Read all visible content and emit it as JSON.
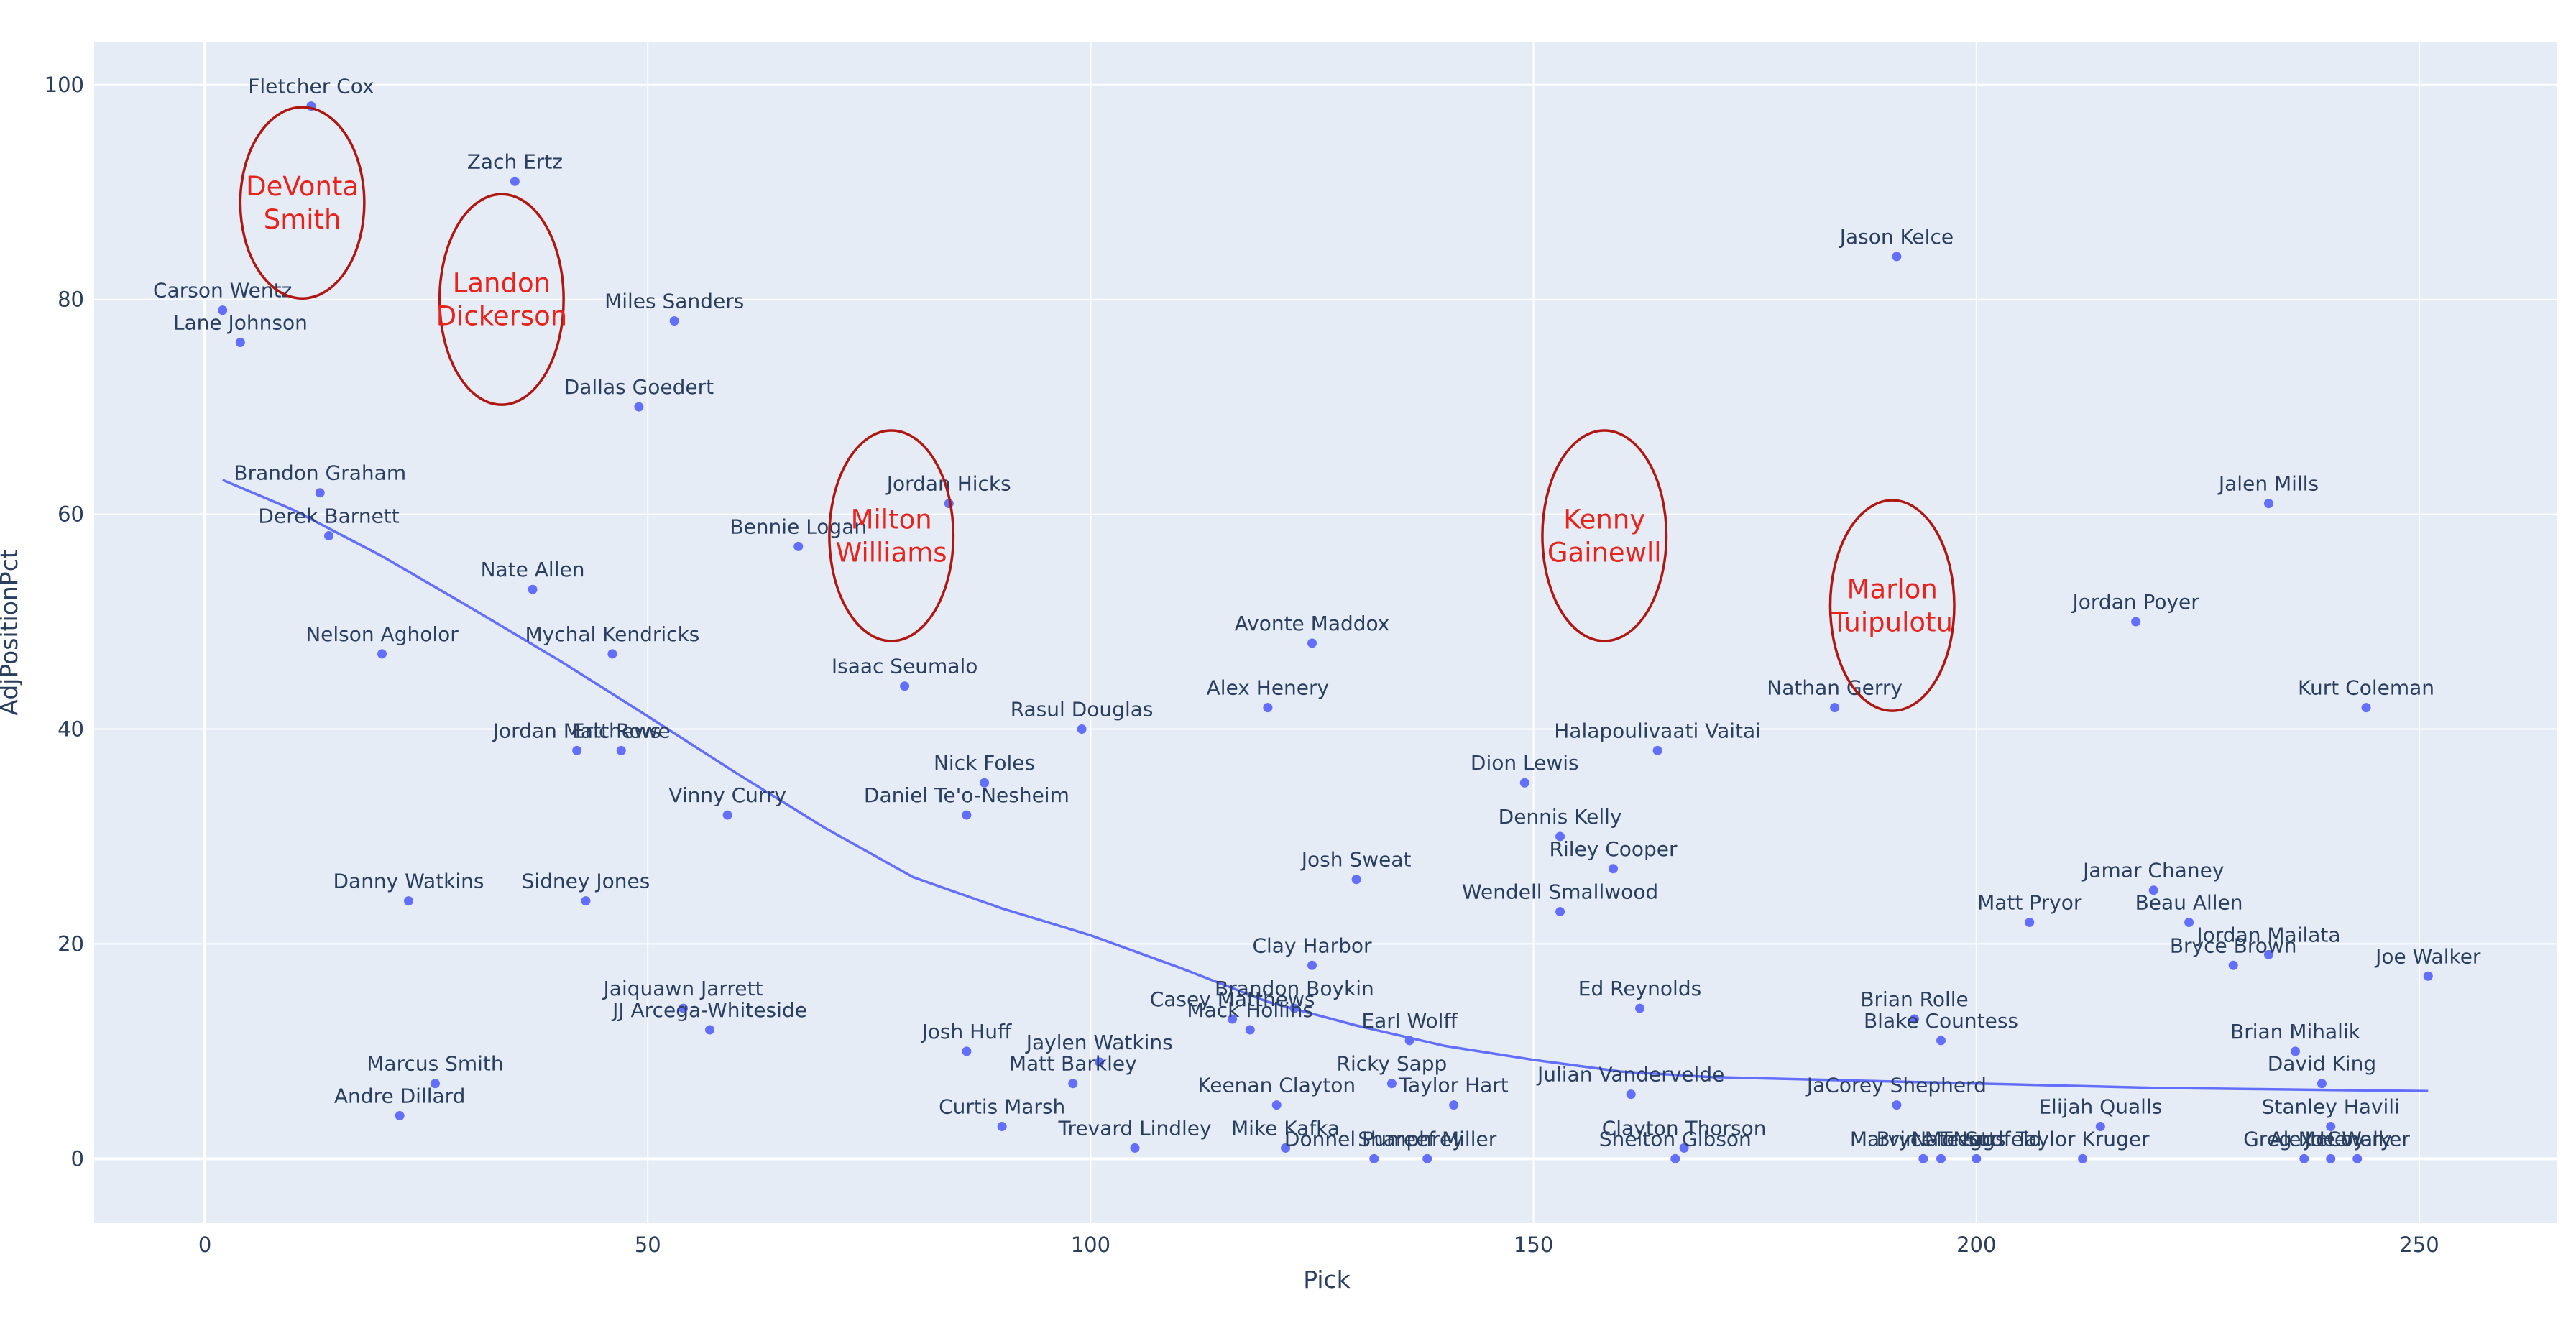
{
  "chart_data": {
    "type": "scatter",
    "title": "",
    "xlabel": "Pick",
    "ylabel": "AdjPositionPct",
    "xlim": [
      -12.5,
      265.5
    ],
    "ylim": [
      -6,
      104
    ],
    "xticks": [
      0,
      50,
      100,
      150,
      200,
      250
    ],
    "yticks": [
      0,
      20,
      40,
      60,
      80,
      100
    ],
    "colors": {
      "plot_bg": "#e5ecf6",
      "grid": "#ffffff",
      "marker": "#636efa",
      "trend": "#636efa",
      "annotation": "#e8231c",
      "ellipse": "#b01712",
      "text": "#2a3f5f"
    },
    "points": [
      {
        "name": "Fletcher Cox",
        "x": 12,
        "y": 98
      },
      {
        "name": "Zach Ertz",
        "x": 35,
        "y": 91
      },
      {
        "name": "Carson Wentz",
        "x": 2,
        "y": 79
      },
      {
        "name": "Lane Johnson",
        "x": 4,
        "y": 76
      },
      {
        "name": "Miles Sanders",
        "x": 53,
        "y": 78
      },
      {
        "name": "Dallas Goedert",
        "x": 49,
        "y": 70
      },
      {
        "name": "Brandon Graham",
        "x": 13,
        "y": 62
      },
      {
        "name": "Derek Barnett",
        "x": 14,
        "y": 58
      },
      {
        "name": "Jordan Hicks",
        "x": 84,
        "y": 61
      },
      {
        "name": "Bennie Logan",
        "x": 67,
        "y": 57
      },
      {
        "name": "Nate Allen",
        "x": 37,
        "y": 53
      },
      {
        "name": "Nelson Agholor",
        "x": 20,
        "y": 47
      },
      {
        "name": "Mychal Kendricks",
        "x": 46,
        "y": 47
      },
      {
        "name": "Isaac Seumalo",
        "x": 79,
        "y": 44
      },
      {
        "name": "Jordan Matthews",
        "x": 42,
        "y": 38
      },
      {
        "name": "Eric Rowe",
        "x": 47,
        "y": 38
      },
      {
        "name": "Rasul Douglas",
        "x": 99,
        "y": 40
      },
      {
        "name": "Avonte Maddox",
        "x": 125,
        "y": 48
      },
      {
        "name": "Alex Henery",
        "x": 120,
        "y": 42
      },
      {
        "name": "Nick Foles",
        "x": 88,
        "y": 35
      },
      {
        "name": "Daniel Te'o-Nesheim",
        "x": 86,
        "y": 32
      },
      {
        "name": "Vinny Curry",
        "x": 59,
        "y": 32
      },
      {
        "name": "Danny Watkins",
        "x": 23,
        "y": 24
      },
      {
        "name": "Sidney Jones",
        "x": 43,
        "y": 24
      },
      {
        "name": "Josh Sweat",
        "x": 130,
        "y": 26
      },
      {
        "name": "Clay Harbor",
        "x": 125,
        "y": 18
      },
      {
        "name": "Jaiquawn Jarrett",
        "x": 54,
        "y": 14
      },
      {
        "name": "JJ Arcega-Whiteside",
        "x": 57,
        "y": 12
      },
      {
        "name": "Casey Matthews",
        "x": 116,
        "y": 13
      },
      {
        "name": "Brandon Boykin",
        "x": 123,
        "y": 14
      },
      {
        "name": "Mack Hollins",
        "x": 118,
        "y": 12
      },
      {
        "name": "Josh Huff",
        "x": 86,
        "y": 10
      },
      {
        "name": "Jaylen Watkins",
        "x": 101,
        "y": 9
      },
      {
        "name": "Matt Barkley",
        "x": 98,
        "y": 7
      },
      {
        "name": "Marcus Smith",
        "x": 26,
        "y": 7
      },
      {
        "name": "Andre Dillard",
        "x": 22,
        "y": 4
      },
      {
        "name": "Curtis Marsh",
        "x": 90,
        "y": 3
      },
      {
        "name": "Trevard Lindley",
        "x": 105,
        "y": 1
      },
      {
        "name": "Keenan Clayton",
        "x": 121,
        "y": 5
      },
      {
        "name": "Mike Kafka",
        "x": 122,
        "y": 1
      },
      {
        "name": "Donnel Pumphrey",
        "x": 132,
        "y": 0
      },
      {
        "name": "Shareef Miller",
        "x": 138,
        "y": 0
      },
      {
        "name": "Earl Wolff",
        "x": 136,
        "y": 11
      },
      {
        "name": "Ricky Sapp",
        "x": 134,
        "y": 7
      },
      {
        "name": "Taylor Hart",
        "x": 141,
        "y": 5
      },
      {
        "name": "Dion Lewis",
        "x": 149,
        "y": 35
      },
      {
        "name": "Dennis Kelly",
        "x": 153,
        "y": 30
      },
      {
        "name": "Riley Cooper",
        "x": 159,
        "y": 27
      },
      {
        "name": "Wendell Smallwood",
        "x": 153,
        "y": 23
      },
      {
        "name": "Halapoulivaati Vaitai",
        "x": 164,
        "y": 38
      },
      {
        "name": "Ed Reynolds",
        "x": 162,
        "y": 14
      },
      {
        "name": "Julian Vandervelde",
        "x": 161,
        "y": 6
      },
      {
        "name": "Clayton Thorson",
        "x": 167,
        "y": 1
      },
      {
        "name": "Shelton Gibson",
        "x": 166,
        "y": 0
      },
      {
        "name": "Jason Kelce",
        "x": 191,
        "y": 84
      },
      {
        "name": "Nathan Gerry",
        "x": 184,
        "y": 42
      },
      {
        "name": "Brian Rolle",
        "x": 193,
        "y": 13
      },
      {
        "name": "Blake Countess",
        "x": 196,
        "y": 11
      },
      {
        "name": "JaCorey Shepherd",
        "x": 191,
        "y": 5
      },
      {
        "name": "Marvin McNutt",
        "x": 194,
        "y": 0
      },
      {
        "name": "Bryce Treggs",
        "x": 196,
        "y": 0
      },
      {
        "name": "Nate Sudfeld",
        "x": 200,
        "y": 0
      },
      {
        "name": "Taylor Kruger",
        "x": 212,
        "y": 0
      },
      {
        "name": "Elijah Qualls",
        "x": 214,
        "y": 3
      },
      {
        "name": "Matt Pryor",
        "x": 206,
        "y": 22
      },
      {
        "name": "Jalen Mills",
        "x": 233,
        "y": 61
      },
      {
        "name": "Jordan Poyer",
        "x": 218,
        "y": 50
      },
      {
        "name": "Kurt Coleman",
        "x": 244,
        "y": 42
      },
      {
        "name": "Jamar Chaney",
        "x": 220,
        "y": 25
      },
      {
        "name": "Beau Allen",
        "x": 224,
        "y": 22
      },
      {
        "name": "Jordan Mailata",
        "x": 233,
        "y": 19
      },
      {
        "name": "Bryce Brown",
        "x": 229,
        "y": 18
      },
      {
        "name": "Joe Walker",
        "x": 251,
        "y": 17
      },
      {
        "name": "Brian Mihalik",
        "x": 236,
        "y": 10
      },
      {
        "name": "David King",
        "x": 239,
        "y": 7
      },
      {
        "name": "Stanley Havili",
        "x": 240,
        "y": 3
      },
      {
        "name": "Greg McCoy",
        "x": 237,
        "y": 0
      },
      {
        "name": "Alex Henery",
        "x": 240,
        "y": 0
      },
      {
        "name": "Joe Walker",
        "x": 243,
        "y": 0
      }
    ],
    "trendline": {
      "x": [
        2,
        10,
        20,
        30,
        40,
        50,
        60,
        70,
        80,
        90,
        100,
        110,
        120,
        130,
        140,
        150,
        160,
        170,
        180,
        190,
        200,
        210,
        220,
        230,
        240,
        251
      ],
      "y": [
        63.2,
        60.4,
        56.1,
        51.3,
        46.4,
        41.2,
        35.9,
        30.8,
        26.2,
        23.3,
        20.8,
        17.8,
        14.6,
        12.4,
        10.5,
        9.2,
        8.1,
        7.6,
        7.4,
        7.2,
        7.0,
        6.8,
        6.6,
        6.5,
        6.4,
        6.3
      ]
    },
    "annotations": [
      {
        "lines": [
          "DeVonta",
          "Smith"
        ],
        "x": 11,
        "y": 89,
        "rx": 7,
        "ry": 8.9
      },
      {
        "lines": [
          "Landon",
          "Dickerson"
        ],
        "x": 33.5,
        "y": 80,
        "rx": 7,
        "ry": 9.8
      },
      {
        "lines": [
          "Milton",
          "Williams"
        ],
        "x": 77.5,
        "y": 58,
        "rx": 7,
        "ry": 9.8
      },
      {
        "lines": [
          "Kenny",
          "Gainewll"
        ],
        "x": 158,
        "y": 58,
        "rx": 7,
        "ry": 9.8
      },
      {
        "lines": [
          "Marlon",
          "Tuipulotu"
        ],
        "x": 190.5,
        "y": 51.5,
        "rx": 7,
        "ry": 9.8
      }
    ]
  }
}
